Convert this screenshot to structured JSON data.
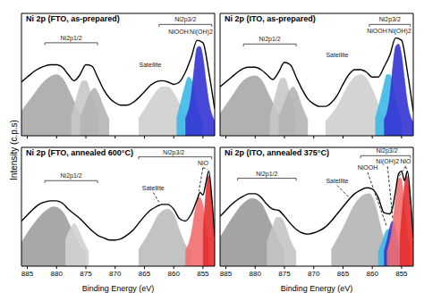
{
  "ylabel": "Intensity (c.p.s)",
  "chart_data": [
    {
      "type": "line",
      "title": "Ni 2p (FTO, as-prepared)",
      "xlim": [
        886,
        853
      ],
      "xticks": [
        885,
        880,
        875,
        870,
        865,
        860,
        855
      ],
      "ylim": [
        0,
        100
      ],
      "tick_labels": false,
      "series": [
        {
          "type": "area",
          "color": "#a9a9a9",
          "x": [
            886,
            884,
            882,
            880,
            879,
            877.5,
            876,
            875
          ],
          "values": [
            20,
            33,
            45,
            50,
            47,
            33,
            18,
            12
          ]
        },
        {
          "type": "area",
          "color": "#c8c8c8",
          "x": [
            877.5,
            876.5,
            875.5,
            875,
            874,
            873
          ],
          "values": [
            14,
            33,
            45,
            45,
            32,
            16
          ]
        },
        {
          "type": "area",
          "color": "#b4b4b4",
          "x": [
            876,
            875,
            874,
            873.5,
            873,
            872,
            871
          ],
          "values": [
            14,
            27,
            37,
            39,
            36,
            24,
            13
          ]
        },
        {
          "type": "area",
          "color": "#cfcfcf",
          "x": [
            866,
            864.5,
            863,
            862,
            861,
            860,
            859,
            858,
            857
          ],
          "values": [
            14,
            25,
            36,
            40,
            40,
            35,
            26,
            17,
            11
          ]
        },
        {
          "type": "area",
          "color": "#3db8e8",
          "x": [
            859.5,
            858.5,
            858,
            857.5,
            857,
            856.5,
            856,
            855
          ],
          "values": [
            14,
            33,
            42,
            48,
            46,
            38,
            24,
            11
          ]
        },
        {
          "type": "area",
          "color": "#3434d4",
          "x": [
            858,
            857,
            856.5,
            856,
            855.5,
            855,
            854.5,
            854,
            853
          ],
          "values": [
            14,
            33,
            55,
            72,
            73,
            64,
            45,
            28,
            12
          ]
        },
        {
          "type": "line",
          "color": "#000000",
          "x": [
            886,
            885,
            884,
            883,
            882,
            881,
            880,
            879,
            878,
            877,
            876,
            875,
            874,
            873,
            872,
            871,
            870,
            869,
            868,
            867,
            866,
            865,
            864,
            863,
            862,
            861,
            860,
            859,
            858,
            857,
            856,
            855,
            854,
            853
          ],
          "values": [
            44,
            48,
            52,
            55,
            57,
            58,
            58,
            56,
            50,
            45,
            50,
            58,
            57,
            48,
            38,
            31,
            27,
            25,
            25,
            27,
            31,
            36,
            41,
            44,
            45,
            44,
            42,
            44,
            52,
            64,
            78,
            76,
            52,
            22
          ]
        }
      ],
      "annotations": [
        {
          "text": "Ni2p1/2",
          "x": 877.5,
          "y": 80,
          "span": [
            882,
            873
          ]
        },
        {
          "text": "Satellite",
          "x": 864,
          "y": 58
        },
        {
          "text": "Ni2p3/2",
          "x": 858,
          "y": 95,
          "span": [
            862.5,
            853.5
          ]
        },
        {
          "text": "NiOOH",
          "x": 859.2,
          "y": 85
        },
        {
          "text": "Ni(OH)2",
          "x": 855.3,
          "y": 85
        }
      ]
    },
    {
      "type": "line",
      "title": "Ni 2p (ITO, as-prepared)",
      "xlim": [
        886,
        853
      ],
      "xticks": [
        885,
        880,
        875,
        870,
        865,
        860,
        855
      ],
      "ylim": [
        0,
        100
      ],
      "tick_labels": false,
      "series": [
        {
          "type": "area",
          "color": "#a9a9a9",
          "x": [
            886,
            884,
            882,
            880,
            879,
            877.5,
            876,
            875
          ],
          "values": [
            18,
            32,
            45,
            49,
            46,
            32,
            18,
            12
          ]
        },
        {
          "type": "area",
          "color": "#c8c8c8",
          "x": [
            877.5,
            876.5,
            875.5,
            875,
            874,
            873
          ],
          "values": [
            14,
            34,
            47,
            47,
            33,
            16
          ]
        },
        {
          "type": "area",
          "color": "#b4b4b4",
          "x": [
            876,
            875,
            874,
            873.5,
            873,
            872,
            871
          ],
          "values": [
            14,
            27,
            38,
            40,
            37,
            24,
            13
          ]
        },
        {
          "type": "area",
          "color": "#cfcfcf",
          "x": [
            868,
            866,
            864.5,
            863,
            862,
            861,
            860,
            859,
            858
          ],
          "values": [
            12,
            24,
            38,
            48,
            50,
            47,
            38,
            26,
            15
          ]
        },
        {
          "type": "area",
          "color": "#3db8e8",
          "x": [
            859.5,
            858.5,
            858,
            857.5,
            857,
            856.5,
            856,
            855
          ],
          "values": [
            14,
            32,
            42,
            50,
            50,
            42,
            28,
            12
          ]
        },
        {
          "type": "area",
          "color": "#3434d4",
          "x": [
            858,
            857,
            856.5,
            856,
            855.5,
            855,
            854.5,
            854,
            853
          ],
          "values": [
            13,
            32,
            56,
            73,
            75,
            66,
            46,
            27,
            11
          ]
        },
        {
          "type": "line",
          "color": "#000000",
          "x": [
            886,
            885,
            884,
            883,
            882,
            881,
            880,
            879,
            878,
            877,
            876,
            875,
            874,
            873,
            872,
            871,
            870,
            869,
            868,
            867,
            866,
            865,
            864,
            863,
            862,
            861,
            860,
            859,
            858,
            857,
            856,
            855,
            854,
            853
          ],
          "values": [
            40,
            44,
            48,
            52,
            55,
            56,
            56,
            54,
            50,
            46,
            52,
            60,
            58,
            48,
            38,
            30,
            26,
            24,
            24,
            27,
            33,
            42,
            50,
            54,
            54,
            52,
            48,
            48,
            56,
            66,
            80,
            78,
            52,
            20
          ]
        }
      ],
      "annotations": [
        {
          "text": "Ni2p1/2",
          "x": 877.5,
          "y": 79,
          "span": [
            882,
            873
          ]
        },
        {
          "text": "Satellite",
          "x": 866,
          "y": 66
        },
        {
          "text": "Ni2p3/2",
          "x": 857,
          "y": 95,
          "span": [
            860.5,
            853.5
          ]
        },
        {
          "text": "NiOOH",
          "x": 859.2,
          "y": 86
        },
        {
          "text": "Ni(OH)2",
          "x": 855.3,
          "y": 86
        }
      ]
    },
    {
      "type": "line",
      "title": "Ni 2p (FTO, annealed 600°C)",
      "xlabel": "Binding Energy (eV)",
      "xlim": [
        886,
        853
      ],
      "xticks": [
        885,
        880,
        875,
        870,
        865,
        860,
        855
      ],
      "ylim": [
        0,
        100
      ],
      "tick_labels": "x",
      "series": [
        {
          "type": "area",
          "color": "#9e9e9e",
          "x": [
            886,
            884,
            882,
            880.5,
            879,
            877.5,
            876,
            875
          ],
          "values": [
            20,
            35,
            46,
            50,
            46,
            32,
            18,
            12
          ]
        },
        {
          "type": "area",
          "color": "#d2d2d2",
          "x": [
            878.5,
            877.5,
            877,
            876.5,
            875.5,
            874.5
          ],
          "values": [
            22,
            33,
            36,
            33,
            22,
            12
          ]
        },
        {
          "type": "area",
          "color": "#bdbdbd",
          "x": [
            866,
            864,
            862.5,
            861,
            860,
            859,
            858,
            857
          ],
          "values": [
            14,
            30,
            44,
            48,
            44,
            30,
            18,
            11
          ]
        },
        {
          "type": "area",
          "color": "#f26d6d",
          "x": [
            858,
            857,
            856.3,
            855.7,
            855.2,
            854.5,
            854
          ],
          "values": [
            13,
            27,
            48,
            58,
            55,
            33,
            17
          ]
        },
        {
          "type": "area",
          "color": "#e52d2d",
          "x": [
            855,
            854.6,
            854.3,
            854,
            853.7,
            853.3,
            853
          ],
          "values": [
            28,
            56,
            72,
            76,
            66,
            38,
            20
          ]
        },
        {
          "type": "line",
          "color": "#000000",
          "x": [
            886,
            885,
            884,
            883,
            882,
            881,
            880,
            879,
            878,
            877,
            876,
            875,
            874,
            873,
            872,
            871,
            870,
            869,
            868,
            867,
            866,
            865,
            864,
            863,
            862,
            861,
            860,
            859,
            858,
            857,
            856,
            855.5,
            855,
            854.5,
            854,
            853.5,
            853
          ],
          "values": [
            38,
            43,
            48,
            52,
            54,
            55,
            55,
            53,
            48,
            44,
            40,
            35,
            30,
            26,
            24,
            22,
            22,
            23,
            26,
            30,
            36,
            42,
            47,
            50,
            52,
            52,
            48,
            40,
            38,
            44,
            56,
            62,
            60,
            70,
            80,
            58,
            25
          ]
        }
      ],
      "annotations": [
        {
          "text": "Ni2p1/2",
          "x": 877.5,
          "y": 76,
          "span": [
            882,
            873
          ]
        },
        {
          "text": "Satellite",
          "x": 863.5,
          "y": 66,
          "points_to": [
            [
              862.5,
              54
            ]
          ]
        },
        {
          "text": "Ni2p3/2",
          "x": 860,
          "y": 96,
          "span": [
            866,
            853.5
          ]
        },
        {
          "text": "NiO",
          "x": 855,
          "y": 87,
          "points_to": [
            [
              855.7,
              63
            ],
            [
              854.2,
              81
            ]
          ]
        }
      ]
    },
    {
      "type": "line",
      "title": "Ni 2p (ITO, annealed 375°C)",
      "xlabel": "Binding Energy (eV)",
      "xlim": [
        886,
        853
      ],
      "xticks": [
        885,
        880,
        875,
        870,
        865,
        860,
        855
      ],
      "ylim": [
        0,
        100
      ],
      "tick_labels": "x",
      "series": [
        {
          "type": "area",
          "color": "#9a9a9a",
          "x": [
            886,
            884,
            882,
            880.5,
            879,
            877.5,
            876,
            875
          ],
          "values": [
            24,
            40,
            53,
            57,
            53,
            38,
            22,
            14
          ]
        },
        {
          "type": "area",
          "color": "#c4c4c4",
          "x": [
            878,
            877,
            876.3,
            875.7,
            875,
            874,
            873
          ],
          "values": [
            20,
            34,
            41,
            41,
            36,
            22,
            12
          ]
        },
        {
          "type": "area",
          "color": "#b5b5b5",
          "x": [
            867,
            865,
            863,
            861.5,
            860.5,
            859.5,
            858.5,
            857.5
          ],
          "values": [
            14,
            32,
            52,
            60,
            61,
            52,
            32,
            15
          ]
        },
        {
          "type": "area",
          "color": "#3db8e8",
          "x": [
            859,
            858.2,
            857.6,
            857.2,
            856.8,
            856.2,
            855.5
          ],
          "values": [
            12,
            22,
            30,
            31,
            28,
            20,
            11
          ]
        },
        {
          "type": "area",
          "color": "#3535d0",
          "x": [
            858,
            857.3,
            856.8,
            856.5,
            856.2,
            855.8,
            855.2
          ],
          "values": [
            12,
            26,
            36,
            38,
            35,
            26,
            12
          ]
        },
        {
          "type": "area",
          "color": "#f27070",
          "x": [
            857.5,
            856.6,
            856,
            855.5,
            855.1,
            854.6,
            854,
            853.5
          ],
          "values": [
            12,
            32,
            58,
            74,
            74,
            56,
            28,
            14
          ]
        },
        {
          "type": "area",
          "color": "#e52d2d",
          "x": [
            855.3,
            854.8,
            854.4,
            854.1,
            853.8,
            853.4,
            853
          ],
          "values": [
            22,
            52,
            72,
            76,
            68,
            44,
            20
          ]
        },
        {
          "type": "line",
          "color": "#000000",
          "x": [
            886,
            885,
            884,
            883,
            882,
            881,
            880,
            879,
            878,
            877,
            876,
            875,
            874,
            873,
            872,
            871,
            870,
            869,
            868,
            867,
            866,
            865,
            864,
            863,
            862,
            861,
            860,
            859,
            858,
            857,
            856.5,
            856,
            855.5,
            855,
            854.5,
            854,
            853.5,
            853
          ],
          "values": [
            42,
            47,
            52,
            56,
            59,
            61,
            61,
            58,
            52,
            48,
            47,
            42,
            36,
            31,
            28,
            27,
            28,
            30,
            33,
            38,
            44,
            50,
            56,
            61,
            64,
            66,
            65,
            58,
            45,
            44,
            50,
            64,
            78,
            80,
            72,
            80,
            58,
            24
          ]
        }
      ],
      "annotations": [
        {
          "text": "Ni2p1/2",
          "x": 878,
          "y": 78,
          "span": [
            883,
            873
          ]
        },
        {
          "text": "Satellite",
          "x": 866,
          "y": 72,
          "points_to": [
            [
              864,
              58
            ]
          ]
        },
        {
          "text": "Ni2p3/2",
          "x": 857.5,
          "y": 97,
          "span": [
            862,
            853.5
          ]
        },
        {
          "text": "NiOOH",
          "x": 860.8,
          "y": 83,
          "points_to": [
            [
              857.5,
              33
            ]
          ]
        },
        {
          "text": "Ni(OH)2",
          "x": 857.4,
          "y": 88,
          "points_to": [
            [
              856.5,
              40
            ]
          ]
        },
        {
          "text": "NiO",
          "x": 854.3,
          "y": 88,
          "points_to": [
            [
              855.4,
              76
            ],
            [
              854.1,
              81
            ]
          ]
        }
      ]
    }
  ]
}
